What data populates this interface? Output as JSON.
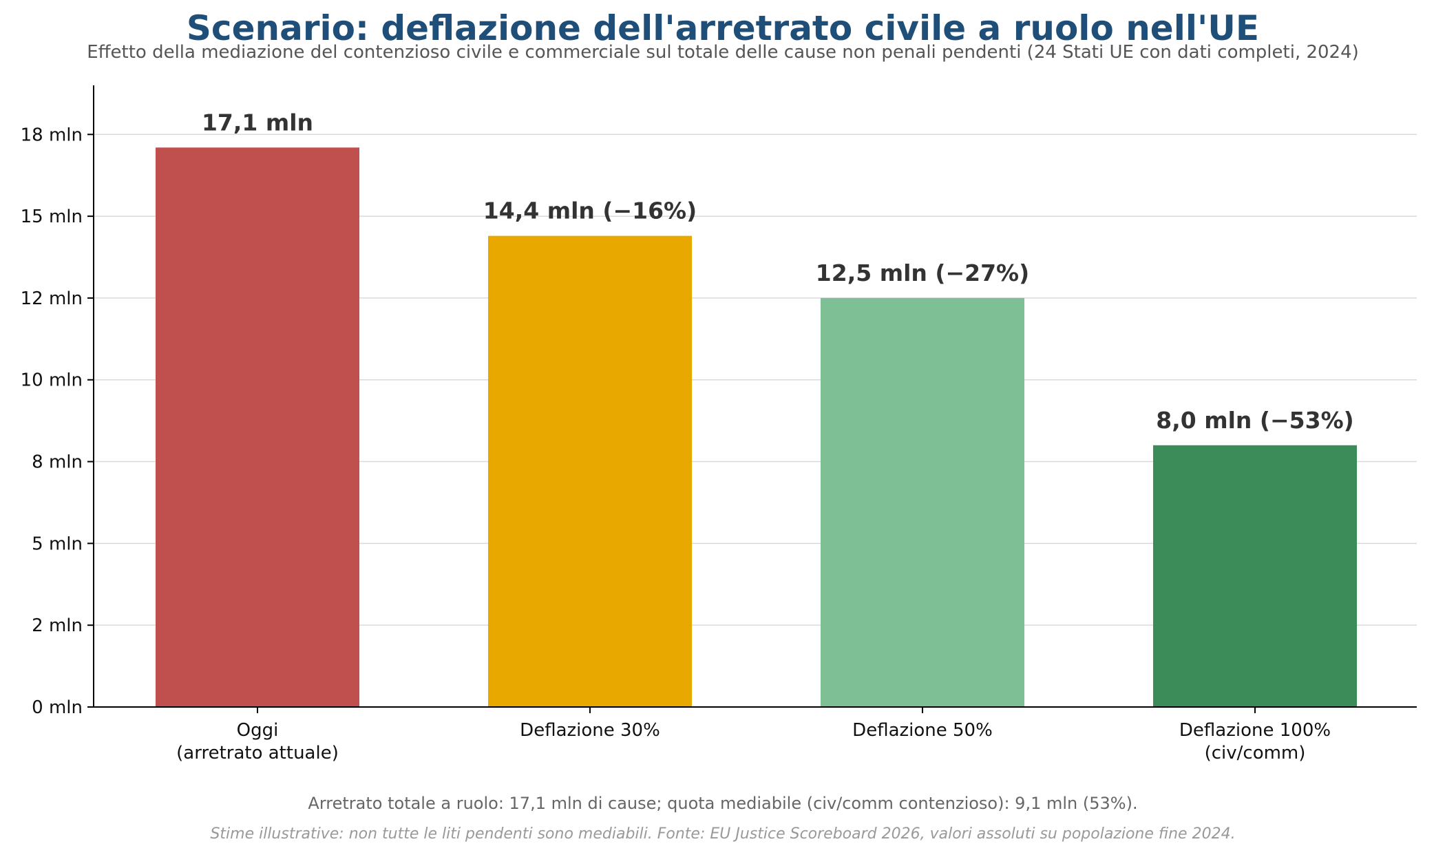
{
  "chart_data": {
    "type": "bar",
    "title": "Scenario: deflazione dell'arretrato civile a ruolo nell'UE",
    "subtitle": "Effetto della mediazione del contenzioso civile e commerciale sul totale delle cause non penali pendenti (24 Stati UE con dati completi, 2024)",
    "categories": [
      [
        "Oggi",
        "(arretrato attuale)"
      ],
      [
        "Deflazione 30%"
      ],
      [
        "Deflazione 50%"
      ],
      [
        "Deflazione 100%",
        "(civ/comm)"
      ]
    ],
    "values": [
      17.1,
      14.4,
      12.5,
      8.0
    ],
    "data_labels": [
      "17,1 mln",
      "14,4 mln (−16%)",
      "12,5 mln (−27%)",
      "8,0 mln (−53%)"
    ],
    "colors": [
      "#c0504d",
      "#e8a800",
      "#7fbf95",
      "#3c8c5a"
    ],
    "y_ticks": [
      {
        "value": 0,
        "label": "0 mln"
      },
      {
        "value": 2.5,
        "label": "2 mln"
      },
      {
        "value": 5,
        "label": "5 mln"
      },
      {
        "value": 7.5,
        "label": "8 mln"
      },
      {
        "value": 10,
        "label": "10 mln"
      },
      {
        "value": 12.5,
        "label": "12 mln"
      },
      {
        "value": 15,
        "label": "15 mln"
      },
      {
        "value": 17.5,
        "label": "18 mln"
      }
    ],
    "ylim": [
      0,
      19
    ],
    "xlabel": "",
    "ylabel": "",
    "grid": "horizontal",
    "legend": "none"
  },
  "footnotes": {
    "summary": "Arretrato totale a ruolo: 17,1 mln di cause; quota mediabile (civ/comm contenzioso): 9,1 mln (53%).",
    "source": "Stime illustrative: non tutte le liti pendenti sono mediabili. Fonte: EU Justice Scoreboard 2026, valori assoluti su popolazione fine 2024."
  }
}
